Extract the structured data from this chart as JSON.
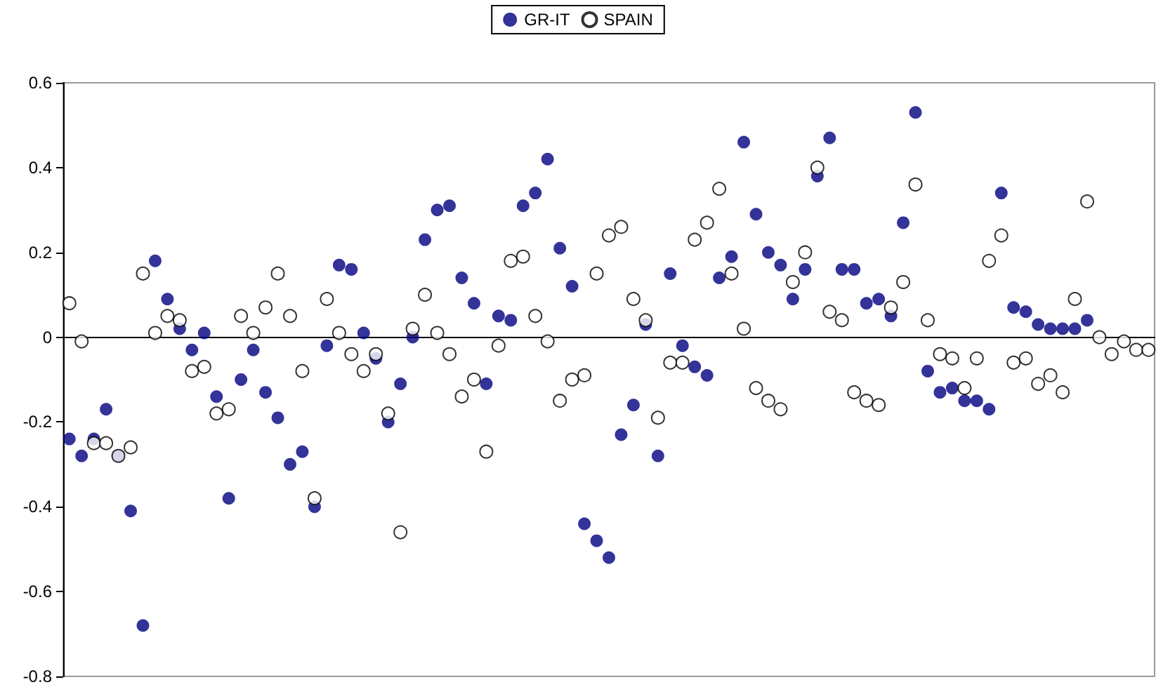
{
  "chart_data": {
    "type": "scatter",
    "categories": [
      null,
      null,
      null,
      null,
      null,
      null,
      null,
      null,
      null,
      null,
      null,
      null,
      null,
      null,
      null,
      null,
      null,
      null,
      null,
      null,
      null,
      null,
      null,
      null,
      null,
      null,
      null,
      null,
      null,
      null,
      null,
      null,
      null,
      null,
      null,
      null,
      null,
      null,
      null,
      null,
      null,
      null,
      null,
      null,
      null,
      null,
      null,
      null,
      null,
      null,
      null,
      null,
      null,
      null,
      null,
      null,
      null,
      null,
      null,
      null,
      null,
      null,
      null,
      null,
      null,
      null,
      null,
      null,
      null,
      null,
      null,
      null,
      null,
      null,
      null,
      null,
      null,
      null,
      null,
      null,
      null,
      null,
      null,
      null,
      null,
      null,
      null,
      null,
      null
    ],
    "series": [
      {
        "name": "GR-IT",
        "color": "#000080",
        "values": [
          -0.24,
          -0.28,
          -0.24,
          -0.17,
          -0.28,
          -0.41,
          -0.68,
          0.18,
          0.09,
          0.02,
          -0.03,
          0.01,
          -0.14,
          -0.38,
          -0.1,
          -0.03,
          -0.13,
          -0.19,
          -0.3,
          -0.27,
          -0.4,
          -0.02,
          0.17,
          0.16,
          0.01,
          -0.05,
          -0.2,
          -0.11,
          0.0,
          0.23,
          0.3,
          0.31,
          0.14,
          0.08,
          -0.11,
          0.05,
          0.04,
          0.31,
          0.34,
          0.42,
          0.21,
          0.12,
          -0.44,
          -0.48,
          -0.52,
          -0.23,
          -0.16,
          0.03,
          -0.28,
          0.15,
          -0.02,
          -0.07,
          -0.09,
          0.14,
          0.19,
          0.46,
          0.29,
          0.2,
          0.17,
          0.09,
          0.16,
          0.38,
          0.47,
          0.16,
          0.16,
          0.08,
          0.09,
          0.05,
          0.27,
          0.53,
          -0.08,
          -0.13,
          -0.12,
          -0.15,
          -0.15,
          -0.17,
          0.34,
          0.07,
          0.06,
          0.03,
          0.02,
          0.02,
          0.02,
          0.04,
          null,
          null,
          null,
          null,
          null
        ]
      },
      {
        "name": "SPAIN",
        "color": "#ffffff",
        "values": [
          0.08,
          -0.01,
          -0.25,
          -0.25,
          -0.28,
          -0.26,
          0.15,
          0.01,
          0.05,
          0.04,
          -0.08,
          -0.07,
          -0.18,
          -0.17,
          0.05,
          0.01,
          0.07,
          0.15,
          0.05,
          -0.08,
          -0.38,
          0.09,
          0.01,
          -0.04,
          -0.08,
          -0.04,
          -0.18,
          -0.46,
          0.02,
          0.1,
          0.01,
          -0.04,
          -0.14,
          -0.1,
          -0.27,
          -0.02,
          0.18,
          0.19,
          0.05,
          -0.01,
          -0.15,
          -0.1,
          -0.09,
          0.15,
          0.24,
          0.26,
          0.09,
          0.04,
          -0.19,
          -0.06,
          -0.06,
          0.23,
          0.27,
          0.35,
          0.15,
          0.02,
          -0.12,
          -0.15,
          -0.17,
          0.13,
          0.2,
          0.4,
          0.06,
          0.04,
          -0.13,
          -0.15,
          -0.16,
          0.07,
          0.13,
          0.36,
          0.04,
          -0.04,
          -0.05,
          -0.12,
          -0.05,
          0.18,
          0.24,
          -0.06,
          -0.05,
          -0.11,
          -0.09,
          -0.13,
          0.09,
          0.32,
          0.0,
          -0.04,
          -0.01,
          -0.03,
          -0.03
        ]
      }
    ],
    "ylim": [
      -0.8,
      0.6
    ],
    "yticks": [
      -0.8,
      -0.6,
      -0.4,
      -0.2,
      0,
      0.2,
      0.4,
      0.6
    ],
    "legend": "top",
    "marker": "circle",
    "tick_labels": "y"
  }
}
